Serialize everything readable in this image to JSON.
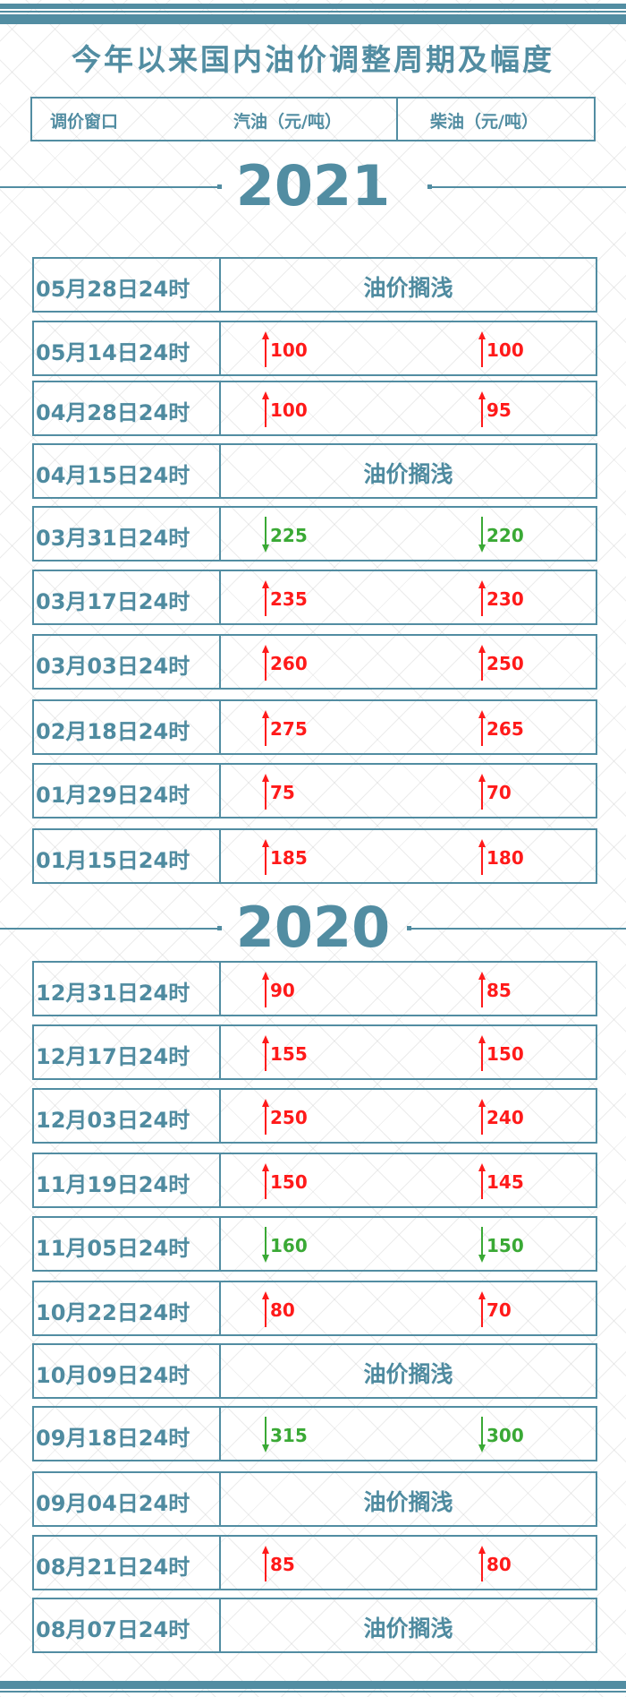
{
  "title": "今年以来国内油价调整周期及幅度",
  "header": {
    "window": "调价窗口",
    "gasoline": "汽油（元/吨）",
    "diesel": "柴油（元/吨）"
  },
  "colors": {
    "accent": "#528da2",
    "up": "#ff1a1a",
    "down": "#3aa935"
  },
  "sections": [
    {
      "year": "2021",
      "rows": [
        {
          "date": "05月28日24时",
          "status": "油价搁浅"
        },
        {
          "date": "05月14日24时",
          "gasoline": {
            "dir": "up",
            "value": "100"
          },
          "diesel": {
            "dir": "up",
            "value": "100"
          }
        },
        {
          "date": "04月28日24时",
          "gasoline": {
            "dir": "up",
            "value": "100"
          },
          "diesel": {
            "dir": "up",
            "value": "95"
          }
        },
        {
          "date": "04月15日24时",
          "status": "油价搁浅"
        },
        {
          "date": "03月31日24时",
          "gasoline": {
            "dir": "down",
            "value": "225"
          },
          "diesel": {
            "dir": "down",
            "value": "220"
          }
        },
        {
          "date": "03月17日24时",
          "gasoline": {
            "dir": "up",
            "value": "235"
          },
          "diesel": {
            "dir": "up",
            "value": "230"
          }
        },
        {
          "date": "03月03日24时",
          "gasoline": {
            "dir": "up",
            "value": "260"
          },
          "diesel": {
            "dir": "up",
            "value": "250"
          }
        },
        {
          "date": "02月18日24时",
          "gasoline": {
            "dir": "up",
            "value": "275"
          },
          "diesel": {
            "dir": "up",
            "value": "265"
          }
        },
        {
          "date": "01月29日24时",
          "gasoline": {
            "dir": "up",
            "value": "75"
          },
          "diesel": {
            "dir": "up",
            "value": "70"
          }
        },
        {
          "date": "01月15日24时",
          "gasoline": {
            "dir": "up",
            "value": "185"
          },
          "diesel": {
            "dir": "up",
            "value": "180"
          }
        }
      ]
    },
    {
      "year": "2020",
      "rows": [
        {
          "date": "12月31日24时",
          "gasoline": {
            "dir": "up",
            "value": "90"
          },
          "diesel": {
            "dir": "up",
            "value": "85"
          }
        },
        {
          "date": "12月17日24时",
          "gasoline": {
            "dir": "up",
            "value": "155"
          },
          "diesel": {
            "dir": "up",
            "value": "150"
          }
        },
        {
          "date": "12月03日24时",
          "gasoline": {
            "dir": "up",
            "value": "250"
          },
          "diesel": {
            "dir": "up",
            "value": "240"
          }
        },
        {
          "date": "11月19日24时",
          "gasoline": {
            "dir": "up",
            "value": "150"
          },
          "diesel": {
            "dir": "up",
            "value": "145"
          }
        },
        {
          "date": "11月05日24时",
          "gasoline": {
            "dir": "down",
            "value": "160"
          },
          "diesel": {
            "dir": "down",
            "value": "150"
          }
        },
        {
          "date": "10月22日24时",
          "gasoline": {
            "dir": "up",
            "value": "80"
          },
          "diesel": {
            "dir": "up",
            "value": "70"
          }
        },
        {
          "date": "10月09日24时",
          "status": "油价搁浅"
        },
        {
          "date": "09月18日24时",
          "gasoline": {
            "dir": "down",
            "value": "315"
          },
          "diesel": {
            "dir": "down",
            "value": "300"
          }
        },
        {
          "date": "09月04日24时",
          "status": "油价搁浅"
        },
        {
          "date": "08月21日24时",
          "gasoline": {
            "dir": "up",
            "value": "85"
          },
          "diesel": {
            "dir": "up",
            "value": "80"
          }
        },
        {
          "date": "08月07日24时",
          "status": "油价搁浅"
        }
      ]
    }
  ]
}
